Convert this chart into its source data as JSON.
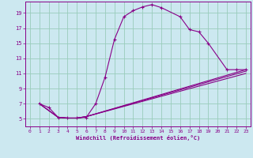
{
  "xlabel": "Windchill (Refroidissement éolien,°C)",
  "bg_color": "#cce8f0",
  "line_color": "#880088",
  "grid_color": "#99ccbb",
  "xlim": [
    -0.5,
    23.5
  ],
  "ylim": [
    4,
    20.5
  ],
  "yticks": [
    5,
    7,
    9,
    11,
    13,
    15,
    17,
    19
  ],
  "xticks": [
    0,
    1,
    2,
    3,
    4,
    5,
    6,
    7,
    8,
    9,
    10,
    11,
    12,
    13,
    14,
    15,
    16,
    17,
    18,
    19,
    20,
    21,
    22,
    23
  ],
  "series": [
    {
      "x": [
        1,
        2,
        3,
        4,
        5,
        6,
        7,
        8,
        9,
        10,
        11,
        12,
        13,
        14,
        16,
        17,
        18,
        19,
        21,
        22,
        23
      ],
      "y": [
        7,
        6.5,
        5.2,
        5.1,
        5.1,
        5.2,
        7,
        10.5,
        15.5,
        18.5,
        19.3,
        19.8,
        20.1,
        19.7,
        18.5,
        16.8,
        16.5,
        15,
        11.5,
        11.5,
        11.5
      ]
    },
    {
      "x": [
        1,
        3,
        4,
        5,
        6,
        23
      ],
      "y": [
        7,
        5.2,
        5.1,
        5.1,
        5.3,
        11.5
      ]
    },
    {
      "x": [
        1,
        3,
        4,
        5,
        6,
        23
      ],
      "y": [
        7,
        5.2,
        5.1,
        5.1,
        5.3,
        11.3
      ]
    },
    {
      "x": [
        1,
        3,
        4,
        5,
        6,
        23
      ],
      "y": [
        7,
        5.2,
        5.1,
        5.1,
        5.3,
        11.0
      ]
    }
  ]
}
